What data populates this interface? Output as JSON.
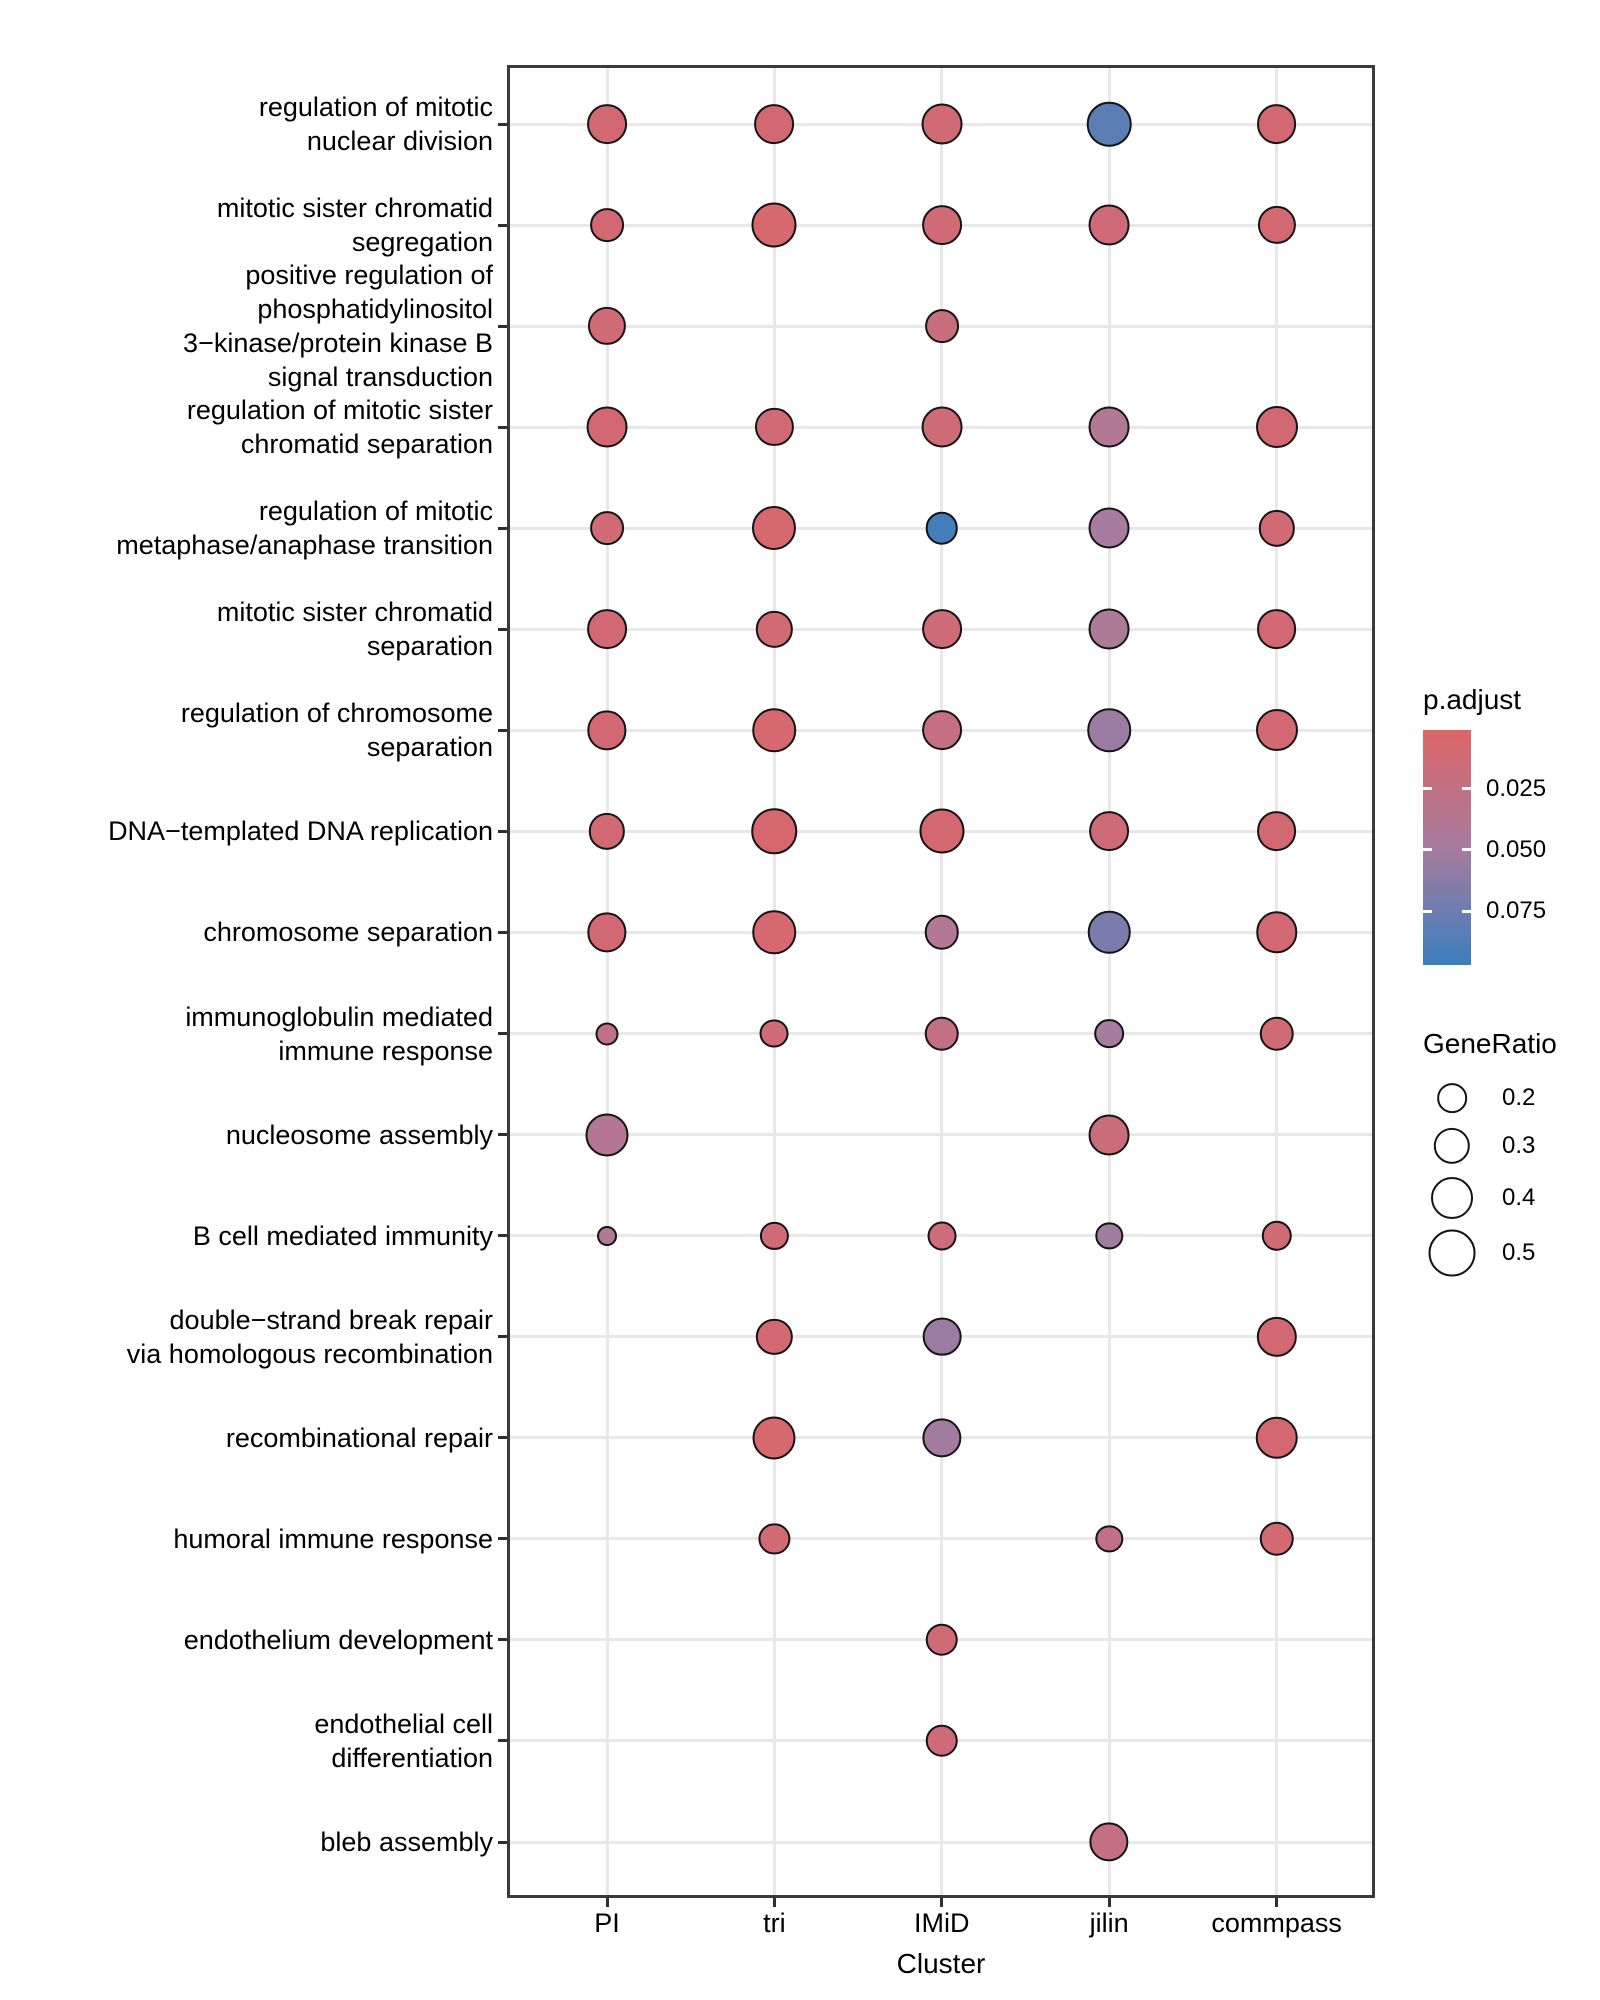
{
  "axis": {
    "x_title": "Cluster"
  },
  "legend": {
    "p_title": "p.adjust",
    "size_title": "GeneRatio"
  },
  "chart_data": {
    "type": "scatter",
    "title": "",
    "xlabel": "Cluster",
    "ylabel": "",
    "grid": "major",
    "legend_position": "right",
    "x_categories": [
      "PI",
      "tri",
      "IMiD",
      "jilin",
      "commpass"
    ],
    "y_categories": [
      "regulation of mitotic nuclear division",
      "mitotic sister chromatid segregation",
      "positive regulation of phosphatidylinositol 3−kinase/protein kinase B signal transduction",
      "regulation of mitotic sister chromatid separation",
      "regulation of mitotic metaphase/anaphase transition",
      "mitotic sister chromatid separation",
      "regulation of chromosome separation",
      "DNA−templated DNA replication",
      "chromosome separation",
      "immunoglobulin mediated immune response",
      "nucleosome assembly",
      "B cell mediated immunity",
      "double−strand break repair via homologous recombination",
      "recombinational repair",
      "humoral immune response",
      "endothelium development",
      "endothelial cell differentiation",
      "bleb assembly"
    ],
    "y_axis_display_labels": [
      "regulation of mitotic\nnuclear division",
      "mitotic sister chromatid\nsegregation",
      "positive regulation of\nphosphatidylinositol\n3−kinase/protein kinase B\nsignal transduction",
      "regulation of mitotic sister\nchromatid separation",
      "regulation of mitotic\nmetaphase/anaphase transition",
      "mitotic sister chromatid\nseparation",
      "regulation of chromosome\nseparation",
      "DNA−templated DNA replication",
      "chromosome separation",
      "immunoglobulin mediated\nimmune response",
      "nucleosome assembly",
      "B cell mediated immunity",
      "double−strand break repair\nvia homologous recombination",
      "recombinational repair",
      "humoral immune response",
      "endothelium development",
      "endothelial cell\ndifferentiation",
      "bleb assembly"
    ],
    "color_scale": {
      "name": "p.adjust",
      "low": "#dc6568",
      "mid": "#a87c9e",
      "high": "#3a7ebd",
      "domain": [
        0.001,
        0.097
      ],
      "ticks": [
        {
          "value": 0.025,
          "label": "0.025"
        },
        {
          "value": 0.05,
          "label": "0.050"
        },
        {
          "value": 0.075,
          "label": "0.075"
        }
      ]
    },
    "size_scale": {
      "name": "GeneRatio",
      "items": [
        {
          "value": 0.2,
          "label": "0.2"
        },
        {
          "value": 0.3,
          "label": "0.3"
        },
        {
          "value": 0.4,
          "label": "0.4"
        },
        {
          "value": 0.5,
          "label": "0.5"
        }
      ]
    },
    "points": [
      {
        "x": "PI",
        "y_index": 0,
        "gene_ratio": 0.36,
        "p_adjust": 0.01
      },
      {
        "x": "tri",
        "y_index": 0,
        "gene_ratio": 0.36,
        "p_adjust": 0.01
      },
      {
        "x": "IMiD",
        "y_index": 0,
        "gene_ratio": 0.38,
        "p_adjust": 0.012
      },
      {
        "x": "jilin",
        "y_index": 0,
        "gene_ratio": 0.45,
        "p_adjust": 0.083
      },
      {
        "x": "commpass",
        "y_index": 0,
        "gene_ratio": 0.36,
        "p_adjust": 0.01
      },
      {
        "x": "PI",
        "y_index": 1,
        "gene_ratio": 0.26,
        "p_adjust": 0.01
      },
      {
        "x": "tri",
        "y_index": 1,
        "gene_ratio": 0.46,
        "p_adjust": 0.007
      },
      {
        "x": "IMiD",
        "y_index": 1,
        "gene_ratio": 0.36,
        "p_adjust": 0.012
      },
      {
        "x": "jilin",
        "y_index": 1,
        "gene_ratio": 0.38,
        "p_adjust": 0.014
      },
      {
        "x": "commpass",
        "y_index": 1,
        "gene_ratio": 0.33,
        "p_adjust": 0.01
      },
      {
        "x": "PI",
        "y_index": 2,
        "gene_ratio": 0.33,
        "p_adjust": 0.012
      },
      {
        "x": "IMiD",
        "y_index": 2,
        "gene_ratio": 0.26,
        "p_adjust": 0.02
      },
      {
        "x": "PI",
        "y_index": 3,
        "gene_ratio": 0.38,
        "p_adjust": 0.01
      },
      {
        "x": "tri",
        "y_index": 3,
        "gene_ratio": 0.33,
        "p_adjust": 0.012
      },
      {
        "x": "IMiD",
        "y_index": 3,
        "gene_ratio": 0.38,
        "p_adjust": 0.013
      },
      {
        "x": "jilin",
        "y_index": 3,
        "gene_ratio": 0.38,
        "p_adjust": 0.04
      },
      {
        "x": "commpass",
        "y_index": 3,
        "gene_ratio": 0.4,
        "p_adjust": 0.01
      },
      {
        "x": "PI",
        "y_index": 4,
        "gene_ratio": 0.26,
        "p_adjust": 0.012
      },
      {
        "x": "tri",
        "y_index": 4,
        "gene_ratio": 0.44,
        "p_adjust": 0.007
      },
      {
        "x": "IMiD",
        "y_index": 4,
        "gene_ratio": 0.24,
        "p_adjust": 0.094
      },
      {
        "x": "jilin",
        "y_index": 4,
        "gene_ratio": 0.38,
        "p_adjust": 0.049
      },
      {
        "x": "commpass",
        "y_index": 4,
        "gene_ratio": 0.3,
        "p_adjust": 0.012
      },
      {
        "x": "PI",
        "y_index": 5,
        "gene_ratio": 0.36,
        "p_adjust": 0.01
      },
      {
        "x": "tri",
        "y_index": 5,
        "gene_ratio": 0.3,
        "p_adjust": 0.012
      },
      {
        "x": "IMiD",
        "y_index": 5,
        "gene_ratio": 0.36,
        "p_adjust": 0.013
      },
      {
        "x": "jilin",
        "y_index": 5,
        "gene_ratio": 0.38,
        "p_adjust": 0.044
      },
      {
        "x": "commpass",
        "y_index": 5,
        "gene_ratio": 0.36,
        "p_adjust": 0.01
      },
      {
        "x": "PI",
        "y_index": 6,
        "gene_ratio": 0.35,
        "p_adjust": 0.01
      },
      {
        "x": "tri",
        "y_index": 6,
        "gene_ratio": 0.43,
        "p_adjust": 0.007
      },
      {
        "x": "IMiD",
        "y_index": 6,
        "gene_ratio": 0.36,
        "p_adjust": 0.022
      },
      {
        "x": "jilin",
        "y_index": 6,
        "gene_ratio": 0.43,
        "p_adjust": 0.055
      },
      {
        "x": "commpass",
        "y_index": 6,
        "gene_ratio": 0.4,
        "p_adjust": 0.01
      },
      {
        "x": "PI",
        "y_index": 7,
        "gene_ratio": 0.3,
        "p_adjust": 0.01
      },
      {
        "x": "tri",
        "y_index": 7,
        "gene_ratio": 0.47,
        "p_adjust": 0.006
      },
      {
        "x": "IMiD",
        "y_index": 7,
        "gene_ratio": 0.46,
        "p_adjust": 0.008
      },
      {
        "x": "jilin",
        "y_index": 7,
        "gene_ratio": 0.36,
        "p_adjust": 0.014
      },
      {
        "x": "commpass",
        "y_index": 7,
        "gene_ratio": 0.36,
        "p_adjust": 0.01
      },
      {
        "x": "PI",
        "y_index": 8,
        "gene_ratio": 0.35,
        "p_adjust": 0.01
      },
      {
        "x": "tri",
        "y_index": 8,
        "gene_ratio": 0.43,
        "p_adjust": 0.007
      },
      {
        "x": "IMiD",
        "y_index": 8,
        "gene_ratio": 0.27,
        "p_adjust": 0.04
      },
      {
        "x": "jilin",
        "y_index": 8,
        "gene_ratio": 0.41,
        "p_adjust": 0.069
      },
      {
        "x": "commpass",
        "y_index": 8,
        "gene_ratio": 0.39,
        "p_adjust": 0.01
      },
      {
        "x": "PI",
        "y_index": 9,
        "gene_ratio": 0.12,
        "p_adjust": 0.028
      },
      {
        "x": "tri",
        "y_index": 9,
        "gene_ratio": 0.19,
        "p_adjust": 0.014
      },
      {
        "x": "IMiD",
        "y_index": 9,
        "gene_ratio": 0.27,
        "p_adjust": 0.024
      },
      {
        "x": "jilin",
        "y_index": 9,
        "gene_ratio": 0.2,
        "p_adjust": 0.049
      },
      {
        "x": "commpass",
        "y_index": 9,
        "gene_ratio": 0.27,
        "p_adjust": 0.012
      },
      {
        "x": "PI",
        "y_index": 10,
        "gene_ratio": 0.42,
        "p_adjust": 0.038
      },
      {
        "x": "jilin",
        "y_index": 10,
        "gene_ratio": 0.38,
        "p_adjust": 0.018
      },
      {
        "x": "PI",
        "y_index": 11,
        "gene_ratio": 0.09,
        "p_adjust": 0.042
      },
      {
        "x": "tri",
        "y_index": 11,
        "gene_ratio": 0.18,
        "p_adjust": 0.014
      },
      {
        "x": "IMiD",
        "y_index": 11,
        "gene_ratio": 0.19,
        "p_adjust": 0.017
      },
      {
        "x": "jilin",
        "y_index": 11,
        "gene_ratio": 0.17,
        "p_adjust": 0.052
      },
      {
        "x": "commpass",
        "y_index": 11,
        "gene_ratio": 0.21,
        "p_adjust": 0.012
      },
      {
        "x": "tri",
        "y_index": 12,
        "gene_ratio": 0.3,
        "p_adjust": 0.01
      },
      {
        "x": "IMiD",
        "y_index": 12,
        "gene_ratio": 0.34,
        "p_adjust": 0.055
      },
      {
        "x": "commpass",
        "y_index": 12,
        "gene_ratio": 0.37,
        "p_adjust": 0.01
      },
      {
        "x": "tri",
        "y_index": 13,
        "gene_ratio": 0.42,
        "p_adjust": 0.007
      },
      {
        "x": "IMiD",
        "y_index": 13,
        "gene_ratio": 0.35,
        "p_adjust": 0.052
      },
      {
        "x": "commpass",
        "y_index": 13,
        "gene_ratio": 0.41,
        "p_adjust": 0.008
      },
      {
        "x": "tri",
        "y_index": 14,
        "gene_ratio": 0.22,
        "p_adjust": 0.012
      },
      {
        "x": "jilin",
        "y_index": 14,
        "gene_ratio": 0.17,
        "p_adjust": 0.027
      },
      {
        "x": "commpass",
        "y_index": 14,
        "gene_ratio": 0.27,
        "p_adjust": 0.011
      },
      {
        "x": "IMiD",
        "y_index": 15,
        "gene_ratio": 0.24,
        "p_adjust": 0.013
      },
      {
        "x": "IMiD",
        "y_index": 16,
        "gene_ratio": 0.24,
        "p_adjust": 0.013
      },
      {
        "x": "jilin",
        "y_index": 17,
        "gene_ratio": 0.35,
        "p_adjust": 0.024
      }
    ]
  }
}
